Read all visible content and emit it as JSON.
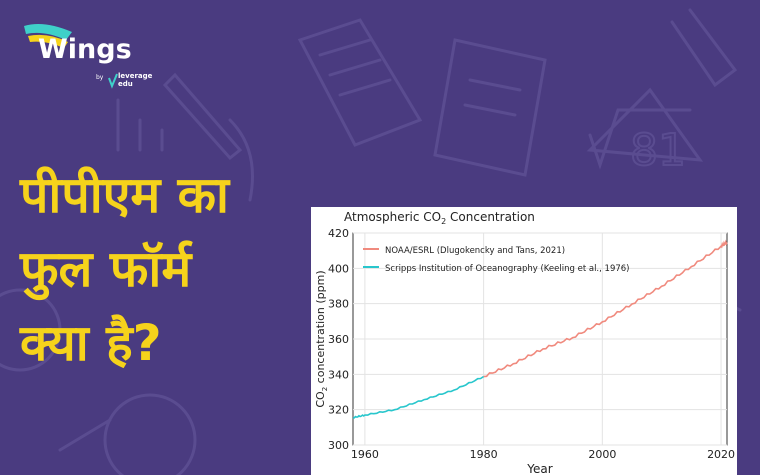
{
  "brand": {
    "name": "Wings",
    "by": "by",
    "partner_line1": "leverage",
    "partner_line2": "edu"
  },
  "headline": {
    "line1": "पीपीएम का",
    "line2": "फुल फॉर्म",
    "line3": "क्या है?"
  },
  "colors": {
    "background": "#4a3b80",
    "headline": "#f6d31b",
    "logo_accent1": "#3fd0c9",
    "logo_accent2": "#f6d31b"
  },
  "chart_data": {
    "type": "line",
    "title_main": "Atmospheric CO",
    "title_sub": "2",
    "title_end": " Concentration",
    "xlabel": "Year",
    "ylabel_main": "CO",
    "ylabel_sub": "2",
    "ylabel_end": " concentration (ppm)",
    "xlim": [
      1958,
      2021
    ],
    "ylim": [
      300,
      420
    ],
    "xticks": [
      "1960",
      "1980",
      "2000",
      "2020"
    ],
    "yticks": [
      "300",
      "320",
      "340",
      "360",
      "380",
      "400",
      "420"
    ],
    "legend_position": "top-left",
    "series": [
      {
        "name": "NOAA/ESRL (Dlugokencky and Tans, 2021)",
        "color": "#f08a7e",
        "x": [
          1980,
          1985,
          1990,
          1995,
          2000,
          2005,
          2010,
          2015,
          2020,
          2021
        ],
        "y": [
          338.7,
          346.0,
          354.4,
          360.8,
          369.7,
          379.8,
          389.9,
          401.0,
          412.5,
          414.7
        ]
      },
      {
        "name": "Scripps Institution of Oceanography (Keeling et al., 1976)",
        "color": "#28c6cc",
        "x": [
          1958,
          1960,
          1965,
          1970,
          1975,
          1980
        ],
        "y": [
          315.5,
          316.9,
          320.0,
          325.7,
          331.1,
          338.7
        ]
      }
    ]
  }
}
